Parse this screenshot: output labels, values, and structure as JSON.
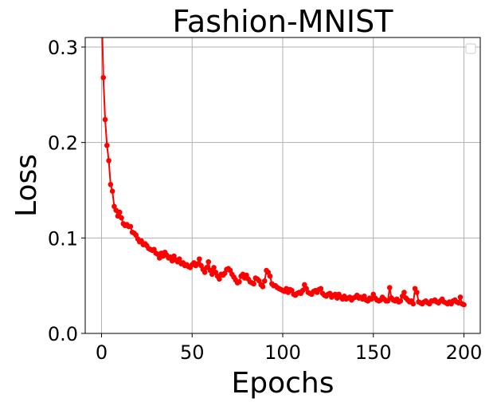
{
  "chart_data": {
    "type": "line",
    "title": "Fashion-MNIST",
    "xlabel": "Epochs",
    "ylabel": "Loss",
    "xlim": [
      -9,
      209
    ],
    "ylim": [
      0.0,
      0.31
    ],
    "xticks": [
      0,
      50,
      100,
      150,
      200
    ],
    "yticks": [
      0.0,
      0.1,
      0.2,
      0.3
    ],
    "xtick_labels": [
      "0",
      "50",
      "100",
      "150",
      "200"
    ],
    "ytick_labels": [
      "0.0",
      "0.1",
      "0.2",
      "0.3"
    ],
    "grid": true,
    "legend_placement": "upper-right",
    "legend_entries": [],
    "series": [
      {
        "color": "#ff0000",
        "marker": "circle",
        "x": [
          0,
          1,
          2,
          3,
          4,
          5,
          6,
          7,
          8,
          9,
          10,
          11,
          12,
          13,
          14,
          15,
          16,
          17,
          18,
          19,
          20,
          21,
          22,
          23,
          24,
          25,
          26,
          27,
          28,
          29,
          30,
          31,
          32,
          33,
          34,
          35,
          36,
          37,
          38,
          39,
          40,
          41,
          42,
          43,
          44,
          45,
          46,
          47,
          48,
          49,
          50,
          51,
          52,
          53,
          54,
          55,
          56,
          57,
          58,
          59,
          60,
          61,
          62,
          63,
          64,
          65,
          66,
          67,
          68,
          69,
          70,
          71,
          72,
          73,
          74,
          75,
          76,
          77,
          78,
          79,
          80,
          81,
          82,
          83,
          84,
          85,
          86,
          87,
          88,
          89,
          90,
          91,
          92,
          93,
          94,
          95,
          96,
          97,
          98,
          99,
          100,
          101,
          102,
          103,
          104,
          105,
          106,
          107,
          108,
          109,
          110,
          111,
          112,
          113,
          114,
          115,
          116,
          117,
          118,
          119,
          120,
          121,
          122,
          123,
          124,
          125,
          126,
          127,
          128,
          129,
          130,
          131,
          132,
          133,
          134,
          135,
          136,
          137,
          138,
          139,
          140,
          141,
          142,
          143,
          144,
          145,
          146,
          147,
          148,
          149,
          150,
          151,
          152,
          153,
          154,
          155,
          156,
          157,
          158,
          159,
          160,
          161,
          162,
          163,
          164,
          165,
          166,
          167,
          168,
          169,
          170,
          171,
          172,
          173,
          174,
          175,
          176,
          177,
          178,
          179,
          180,
          181,
          182,
          183,
          184,
          185,
          186,
          187,
          188,
          189,
          190,
          191,
          192,
          193,
          194,
          195,
          196,
          197,
          198,
          199,
          200
        ],
        "y": [
          0.345,
          0.268,
          0.224,
          0.197,
          0.181,
          0.156,
          0.149,
          0.133,
          0.129,
          0.123,
          0.127,
          0.121,
          0.115,
          0.113,
          0.114,
          0.112,
          0.112,
          0.106,
          0.105,
          0.103,
          0.099,
          0.096,
          0.097,
          0.093,
          0.094,
          0.092,
          0.089,
          0.088,
          0.087,
          0.088,
          0.084,
          0.083,
          0.079,
          0.084,
          0.081,
          0.085,
          0.082,
          0.079,
          0.08,
          0.076,
          0.081,
          0.077,
          0.075,
          0.078,
          0.073,
          0.074,
          0.071,
          0.072,
          0.07,
          0.069,
          0.072,
          0.074,
          0.071,
          0.073,
          0.078,
          0.071,
          0.067,
          0.064,
          0.069,
          0.075,
          0.066,
          0.062,
          0.069,
          0.064,
          0.06,
          0.057,
          0.062,
          0.061,
          0.063,
          0.067,
          0.068,
          0.066,
          0.062,
          0.059,
          0.056,
          0.053,
          0.054,
          0.06,
          0.062,
          0.058,
          0.061,
          0.057,
          0.054,
          0.053,
          0.052,
          0.058,
          0.057,
          0.055,
          0.051,
          0.049,
          0.055,
          0.066,
          0.064,
          0.06,
          0.052,
          0.05,
          0.05,
          0.048,
          0.047,
          0.046,
          0.045,
          0.044,
          0.047,
          0.043,
          0.046,
          0.045,
          0.041,
          0.04,
          0.042,
          0.043,
          0.042,
          0.045,
          0.051,
          0.047,
          0.043,
          0.042,
          0.041,
          0.044,
          0.045,
          0.043,
          0.046,
          0.047,
          0.042,
          0.04,
          0.039,
          0.041,
          0.042,
          0.038,
          0.04,
          0.041,
          0.037,
          0.041,
          0.038,
          0.036,
          0.039,
          0.036,
          0.037,
          0.038,
          0.035,
          0.037,
          0.038,
          0.04,
          0.037,
          0.038,
          0.036,
          0.039,
          0.035,
          0.034,
          0.037,
          0.036,
          0.041,
          0.037,
          0.035,
          0.034,
          0.035,
          0.038,
          0.036,
          0.034,
          0.034,
          0.048,
          0.037,
          0.035,
          0.034,
          0.036,
          0.033,
          0.034,
          0.039,
          0.043,
          0.037,
          0.035,
          0.033,
          0.034,
          0.031,
          0.047,
          0.043,
          0.033,
          0.032,
          0.031,
          0.033,
          0.034,
          0.032,
          0.031,
          0.034,
          0.034,
          0.035,
          0.033,
          0.032,
          0.034,
          0.036,
          0.033,
          0.032,
          0.031,
          0.033,
          0.031,
          0.034,
          0.035,
          0.033,
          0.032,
          0.038,
          0.031,
          0.03
        ]
      }
    ]
  }
}
